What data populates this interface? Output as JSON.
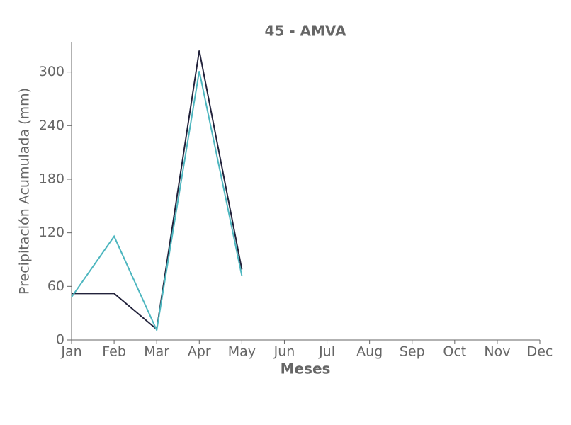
{
  "chart_data": {
    "type": "line",
    "title": "45 - AMVA",
    "xlabel": "Meses",
    "ylabel": "Precipitación Acumulada (mm)",
    "categories": [
      "Jan",
      "Feb",
      "Mar",
      "Apr",
      "May",
      "Jun",
      "Jul",
      "Aug",
      "Sep",
      "Oct",
      "Nov",
      "Dec"
    ],
    "series": [
      {
        "color": "#22223b",
        "values": [
          52,
          52,
          12,
          324,
          79,
          null,
          null,
          null,
          null,
          null,
          null,
          null
        ]
      },
      {
        "color": "#4db6bf",
        "values": [
          48,
          116,
          11,
          301,
          72,
          null,
          null,
          null,
          null,
          null,
          null,
          null
        ]
      }
    ],
    "ylim": [
      0,
      333
    ],
    "yticks": [
      0,
      60,
      120,
      180,
      240,
      300
    ],
    "grid": false
  }
}
